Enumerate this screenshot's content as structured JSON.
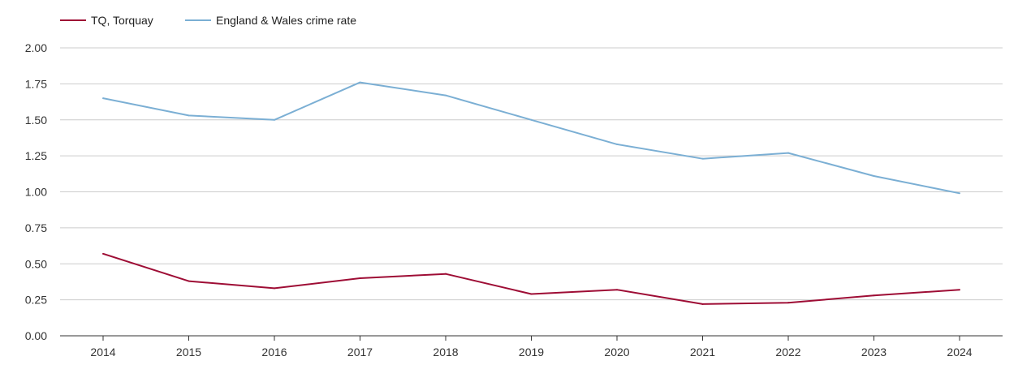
{
  "chart_data": {
    "type": "line",
    "title": "",
    "xlabel": "",
    "ylabel": "",
    "ylim": [
      0,
      2
    ],
    "yticks": [
      "0.00",
      "0.25",
      "0.50",
      "0.75",
      "1.00",
      "1.25",
      "1.50",
      "1.75",
      "2.00"
    ],
    "grid": true,
    "legend_position": "top-left",
    "categories": [
      "2014",
      "2015",
      "2016",
      "2017",
      "2018",
      "2019",
      "2020",
      "2021",
      "2022",
      "2023",
      "2024"
    ],
    "series": [
      {
        "name": "TQ, Torquay",
        "color": "#9e0d35",
        "values": [
          0.57,
          0.38,
          0.33,
          0.4,
          0.43,
          0.29,
          0.32,
          0.22,
          0.23,
          0.28,
          0.32
        ]
      },
      {
        "name": "England & Wales crime rate",
        "color": "#7bafd4",
        "values": [
          1.65,
          1.53,
          1.5,
          1.76,
          1.67,
          1.5,
          1.33,
          1.23,
          1.27,
          1.11,
          0.99
        ]
      }
    ]
  }
}
